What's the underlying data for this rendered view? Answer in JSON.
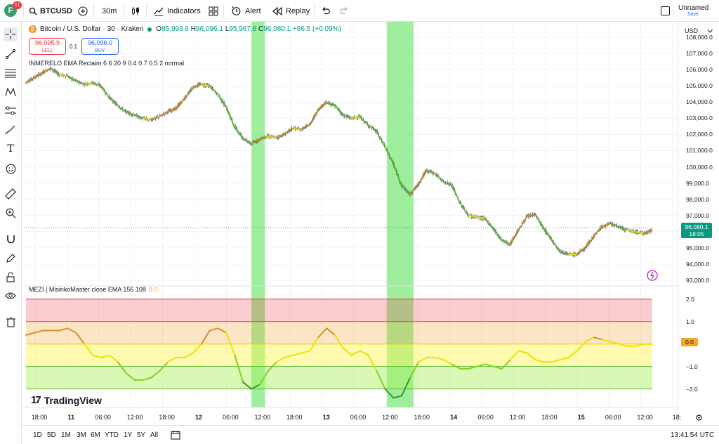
{
  "header": {
    "avatar_letter": "F",
    "avatar_badge": "11",
    "symbol": "BTCUSD",
    "interval": "30m",
    "indicators_label": "Indicators",
    "alert_label": "Alert",
    "replay_label": "Replay",
    "layout_name": "Unnamed",
    "save_label": "Save"
  },
  "legend": {
    "title": "Bitcoin / U.S. Dollar · 30 · Kraken",
    "open_label": "O",
    "open": "95,993.6",
    "high_label": "H",
    "high": "96,096.1",
    "low_label": "L",
    "low": "95,967.8",
    "close_label": "C",
    "close": "96,080.1",
    "change": "+86.5 (+0.09%)"
  },
  "trade": {
    "sell_price": "96,095.9",
    "sell_label": "SELL",
    "spread": "0.1",
    "buy_price": "96,096.0",
    "buy_label": "BUY"
  },
  "indicator1": "INMERELO EMA Reclaim 6 6 20 9 0.4 0.7 0.5 2 normal",
  "indicator2": {
    "text": "MEZI | MisinkoMaster close EMA 156 108",
    "value": "0.0"
  },
  "currency": "USD",
  "price_axis": [
    "108,000.0",
    "107,000.0",
    "106,000.0",
    "105,000.0",
    "104,000.0",
    "103,000.0",
    "102,000.0",
    "101,000.0",
    "100,000.0",
    "99,000.0",
    "98,000.0",
    "97,000.0",
    "95,000.0",
    "94,000.0",
    "93,000.0"
  ],
  "current_price": {
    "value": "96,080.1",
    "countdown": "18:05"
  },
  "osc_axis": [
    "2.0",
    "1.0",
    "−1.0",
    "−2.0"
  ],
  "osc_current": "0.0",
  "time_axis": [
    "18:00",
    "11",
    "06:00",
    "12:00",
    "18:00",
    "12",
    "06:00",
    "12:00",
    "18:00",
    "13",
    "06:00",
    "12:00",
    "18:00",
    "14",
    "06:00",
    "12:00",
    "18:00",
    "15",
    "06:00",
    "12:00",
    "18:"
  ],
  "ranges": [
    "1D",
    "5D",
    "1M",
    "3M",
    "6M",
    "YTD",
    "1Y",
    "5Y",
    "All"
  ],
  "clock": "13:41:54 UTC",
  "brand": "TradingView",
  "colors": {
    "up": "#089981",
    "down": "#f23645",
    "accent": "#2962ff",
    "highlight": "#7ee87e"
  },
  "chart_data": [
    {
      "type": "line",
      "series": [
        {
          "values": [
            105200,
            105500,
            105800,
            106100,
            105700,
            105600,
            105300,
            105100,
            105200,
            105000,
            104300,
            103800,
            103400,
            103200,
            103000,
            102900,
            103100,
            103400,
            103600,
            104200,
            104900,
            105100,
            105000,
            104500,
            103700,
            102500,
            101800,
            101400,
            101700,
            101900,
            101800,
            102000,
            102400,
            102300,
            102600,
            103500,
            104000,
            103800,
            103200,
            103000,
            103100,
            102600,
            102200,
            101300,
            100200,
            98900,
            98300,
            98900,
            99800,
            99600,
            99100,
            98900,
            97800,
            97000,
            96900,
            96800,
            96200,
            95500,
            95200,
            96100,
            96900,
            97100,
            96200,
            95500,
            94800,
            94600,
            94600,
            95000,
            95700,
            96300,
            96500,
            96300,
            96100,
            96000,
            95900,
            96080
          ]
        }
      ],
      "ylim": [
        93000,
        108000
      ]
    },
    {
      "type": "line",
      "series": [
        {
          "values": [
            0.4,
            0.5,
            0.6,
            0.6,
            0.6,
            0.7,
            0.5,
            0.0,
            -0.5,
            -0.6,
            -0.5,
            -0.8,
            -1.3,
            -1.6,
            -1.6,
            -1.5,
            -1.2,
            -0.8,
            -0.6,
            -0.6,
            -0.4,
            0.0,
            0.6,
            0.7,
            0.5,
            -0.5,
            -1.7,
            -2.0,
            -1.8,
            -1.2,
            -0.8,
            -0.6,
            -0.5,
            -0.4,
            -0.3,
            0.3,
            0.7,
            0.4,
            -0.2,
            -0.5,
            -0.3,
            -0.5,
            -1.2,
            -2.0,
            -2.4,
            -2.3,
            -1.5,
            -0.8,
            -0.6,
            -0.6,
            -0.7,
            -0.9,
            -1.1,
            -1.1,
            -1.0,
            -0.9,
            -1.0,
            -1.1,
            -0.7,
            -0.3,
            -0.4,
            -0.7,
            -0.8,
            -0.8,
            -0.7,
            -0.6,
            -0.3,
            0.1,
            0.3,
            0.2,
            0.1,
            0.0,
            -0.1,
            -0.1,
            0.0,
            0.0
          ]
        }
      ],
      "zones": [
        2.0,
        1.0,
        0.0,
        -1.0,
        -2.0
      ],
      "ylim": [
        -2.7,
        2.4
      ]
    }
  ]
}
